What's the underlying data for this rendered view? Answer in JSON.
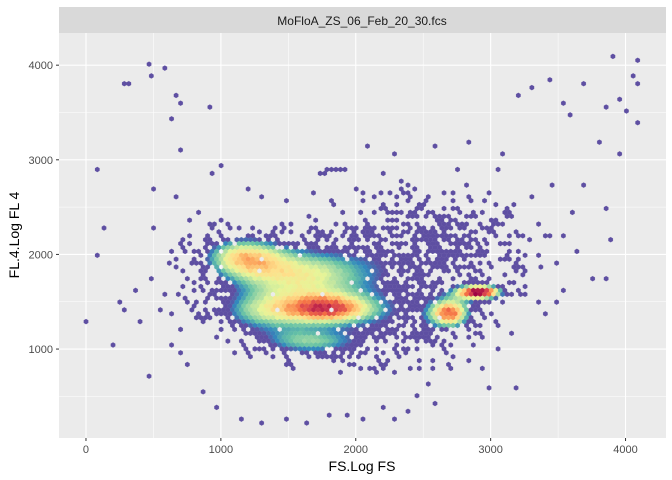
{
  "chart_data": {
    "type": "hexbin",
    "facet_label": "MoFloA_ZS_06_Feb_20_30.fcs",
    "xlabel": "FS.Log FS",
    "ylabel": "FL.4.Log FL 4",
    "xlim": [
      -200,
      4300
    ],
    "ylim": [
      60,
      4340
    ],
    "x_ticks": [
      0,
      1000,
      2000,
      3000,
      4000
    ],
    "y_ticks": [
      1000,
      2000,
      3000,
      4000
    ],
    "grid": true,
    "colormap": [
      "#5e4fa2",
      "#3288bd",
      "#66c2a5",
      "#abdda4",
      "#e6f598",
      "#fee08b",
      "#fdae61",
      "#f46d43",
      "#d53e4f",
      "#9e0142"
    ],
    "density_regions": [
      {
        "x": 1150,
        "y": 1980,
        "sx": 220,
        "sy": 160,
        "weight": 0.55
      },
      {
        "x": 1600,
        "y": 1780,
        "sx": 380,
        "sy": 220,
        "weight": 0.6
      },
      {
        "x": 1800,
        "y": 1420,
        "sx": 230,
        "sy": 110,
        "weight": 0.7
      },
      {
        "x": 1300,
        "y": 1380,
        "sx": 260,
        "sy": 160,
        "weight": 0.45
      },
      {
        "x": 1650,
        "y": 1070,
        "sx": 280,
        "sy": 110,
        "weight": 0.45
      },
      {
        "x": 2550,
        "y": 2100,
        "sx": 420,
        "sy": 300,
        "weight": 0.3
      },
      {
        "x": 2300,
        "y": 1300,
        "sx": 330,
        "sy": 280,
        "weight": 0.25
      },
      {
        "x": 2920,
        "y": 1600,
        "sx": 120,
        "sy": 55,
        "weight": 1.0
      },
      {
        "x": 2700,
        "y": 1380,
        "sx": 110,
        "sy": 110,
        "weight": 0.75
      },
      {
        "x": 1850,
        "y": 2880,
        "sx": 60,
        "sy": 30,
        "weight": 0.35
      },
      {
        "x": 3440,
        "y": 3830,
        "sx": 30,
        "sy": 20,
        "weight": 0.45
      }
    ],
    "sparse_points": [
      [
        480,
        4020
      ],
      [
        500,
        3880
      ],
      [
        300,
        3820
      ],
      [
        330,
        3820
      ],
      [
        600,
        3970
      ],
      [
        680,
        3660
      ],
      [
        700,
        3580
      ],
      [
        640,
        3440
      ],
      [
        920,
        3550
      ],
      [
        4100,
        4060
      ],
      [
        3900,
        4080
      ],
      [
        4050,
        3870
      ],
      [
        4100,
        3800
      ],
      [
        3700,
        3800
      ],
      [
        3300,
        3780
      ],
      [
        3200,
        3700
      ],
      [
        3550,
        3600
      ],
      [
        3600,
        3480
      ],
      [
        3850,
        3550
      ],
      [
        4000,
        3520
      ],
      [
        3950,
        3620
      ],
      [
        4100,
        3400
      ],
      [
        3800,
        3180
      ],
      [
        3950,
        3050
      ],
      [
        3700,
        2720
      ],
      [
        3850,
        2500
      ],
      [
        3600,
        2450
      ],
      [
        3880,
        2150
      ],
      [
        3850,
        1750
      ],
      [
        3100,
        3050
      ],
      [
        80,
        2890
      ],
      [
        120,
        2270
      ],
      [
        100,
        1980
      ],
      [
        0,
        1280
      ],
      [
        200,
        1050
      ],
      [
        290,
        1400
      ],
      [
        260,
        1500
      ],
      [
        360,
        1620
      ],
      [
        480,
        1750
      ],
      [
        400,
        1300
      ],
      [
        480,
        720
      ],
      [
        500,
        2680
      ],
      [
        500,
        2280
      ],
      [
        680,
        2600
      ],
      [
        700,
        3100
      ],
      [
        940,
        2870
      ],
      [
        3200,
        570
      ],
      [
        3000,
        600
      ],
      [
        2300,
        250
      ],
      [
        2400,
        330
      ],
      [
        2450,
        500
      ],
      [
        2600,
        420
      ],
      [
        3050,
        1000
      ],
      [
        3150,
        1180
      ],
      [
        3400,
        1380
      ],
      [
        3500,
        1500
      ],
      [
        3550,
        1600
      ],
      [
        3750,
        1760
      ],
      [
        2600,
        3150
      ],
      [
        2850,
        3200
      ],
      [
        3050,
        2900
      ],
      [
        1000,
        2950
      ],
      [
        1200,
        2700
      ],
      [
        850,
        2450
      ],
      [
        780,
        2380
      ],
      [
        620,
        1900
      ],
      [
        650,
        2050
      ],
      [
        580,
        1580
      ],
      [
        540,
        1400
      ],
      [
        700,
        1200
      ],
      [
        620,
        1050
      ],
      [
        690,
        950
      ],
      [
        760,
        850
      ],
      [
        880,
        550
      ],
      [
        980,
        400
      ],
      [
        1150,
        260
      ],
      [
        1300,
        230
      ],
      [
        1500,
        250
      ],
      [
        1650,
        230
      ],
      [
        1800,
        300
      ],
      [
        1950,
        320
      ],
      [
        2050,
        250
      ],
      [
        2200,
        380
      ],
      [
        2550,
        650
      ],
      [
        2700,
        780
      ],
      [
        2900,
        1150
      ],
      [
        2950,
        800
      ],
      [
        3350,
        2300
      ],
      [
        3450,
        2750
      ],
      [
        3300,
        2600
      ],
      [
        3550,
        2200
      ],
      [
        3650,
        2050
      ],
      [
        3350,
        1500
      ],
      [
        2100,
        3150
      ],
      [
        2300,
        3050
      ],
      [
        2000,
        2700
      ],
      [
        1500,
        2550
      ],
      [
        1300,
        2600
      ],
      [
        1700,
        2650
      ],
      [
        2200,
        2850
      ],
      [
        2750,
        2900
      ],
      [
        3000,
        2650
      ],
      [
        3150,
        2400
      ]
    ]
  }
}
